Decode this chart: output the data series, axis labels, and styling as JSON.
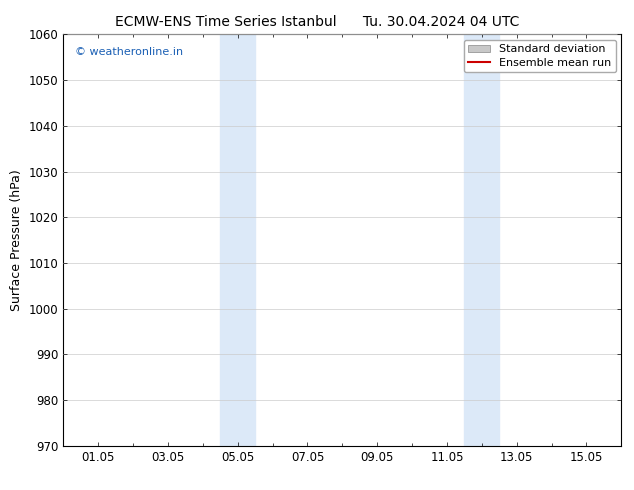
{
  "title_left": "ECMW-ENS Time Series Istanbul",
  "title_right": "Tu. 30.04.2024 04 UTC",
  "ylabel": "Surface Pressure (hPa)",
  "ylim": [
    970,
    1060
  ],
  "yticks": [
    970,
    980,
    990,
    1000,
    1010,
    1020,
    1030,
    1040,
    1050,
    1060
  ],
  "xtick_labels": [
    "01.05",
    "03.05",
    "05.05",
    "07.05",
    "09.05",
    "11.05",
    "13.05",
    "15.05"
  ],
  "xtick_positions": [
    1,
    3,
    5,
    7,
    9,
    11,
    13,
    15
  ],
  "shaded_regions": [
    {
      "x_start": 4.5,
      "x_end": 5.5
    },
    {
      "x_start": 11.5,
      "x_end": 12.5
    }
  ],
  "shaded_color": "#dce9f8",
  "watermark_text": "© weatheronline.in",
  "watermark_color": "#1a5fb4",
  "legend_std_color": "#c8c8c8",
  "legend_line_color": "#cc0000",
  "background_color": "#ffffff",
  "xlim": [
    0.0,
    16.0
  ],
  "grid_color": "#cccccc",
  "spine_color": "#000000",
  "tick_label_fontsize": 8.5,
  "ylabel_fontsize": 9,
  "title_fontsize": 10,
  "watermark_fontsize": 8,
  "legend_fontsize": 8
}
